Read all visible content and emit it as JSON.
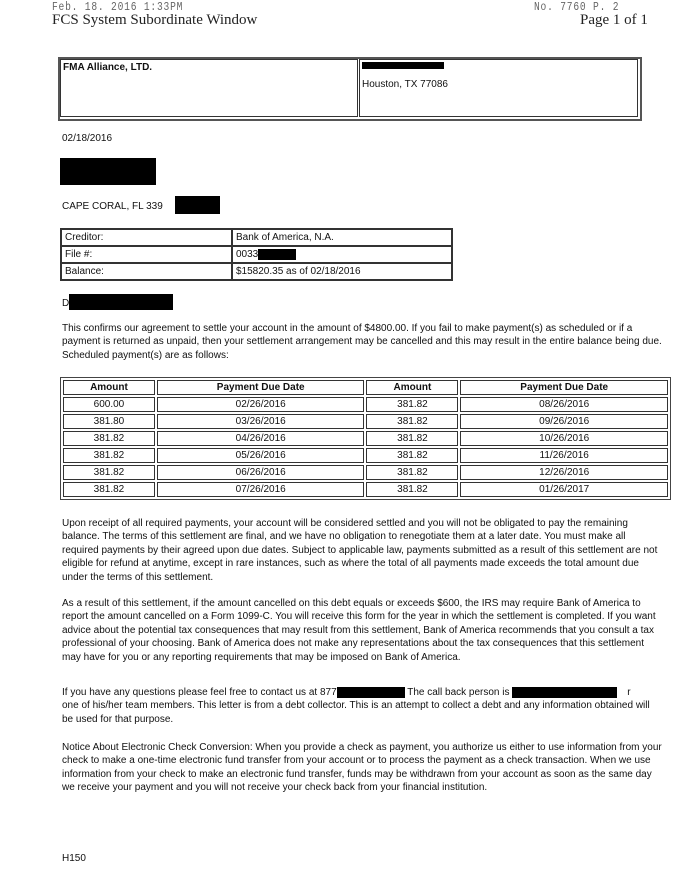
{
  "fax_header": {
    "datetime": "Feb. 18. 2016   1:33PM",
    "number": "No. 7760   P. 2"
  },
  "window_title": "FCS System Subordinate Window",
  "page_label": "Page 1 of 1",
  "sender": {
    "name": "FMA Alliance, LTD.",
    "city": "Houston, TX 77086"
  },
  "letter_date": "02/18/2016",
  "recipient": {
    "city_line": "CAPE CORAL, FL  339"
  },
  "account": {
    "rows": [
      {
        "label": "Creditor:",
        "value": "Bank of America, N.A."
      },
      {
        "label": "File #:",
        "value": "0033"
      },
      {
        "label": "Balance:",
        "value": "$15820.35 as of 02/18/2016"
      }
    ]
  },
  "salutation": "Dear",
  "intro": "This confirms our agreement to settle your account in the amount of $4800.00. If you fail to make payment(s) as scheduled or if a payment is returned as unpaid, then your settlement arrangement may be cancelled and this may result in the entire balance being due. Scheduled payment(s) are as follows:",
  "schedule": {
    "headers": [
      "Amount",
      "Payment Due Date",
      "Amount",
      "Payment Due Date"
    ],
    "rows": [
      [
        "600.00",
        "02/26/2016",
        "381.82",
        "08/26/2016"
      ],
      [
        "381.80",
        "03/26/2016",
        "381.82",
        "09/26/2016"
      ],
      [
        "381.82",
        "04/26/2016",
        "381.82",
        "10/26/2016"
      ],
      [
        "381.82",
        "05/26/2016",
        "381.82",
        "11/26/2016"
      ],
      [
        "381.82",
        "06/26/2016",
        "381.82",
        "12/26/2016"
      ],
      [
        "381.82",
        "07/26/2016",
        "381.82",
        "01/26/2017"
      ]
    ]
  },
  "para_settled": "Upon receipt of all required payments, your account will be considered settled and you will not be obligated to pay the remaining balance. The terms of this settlement are final, and we have no obligation to renegotiate them at a later date. You must make all required payments by their agreed upon due dates. Subject to applicable law, payments submitted as a result of this settlement are not eligible for refund at anytime, except in rare instances, such as where the total of all payments made exceeds the total amount due under the terms of this settlement.",
  "para_irs": "As a result of this settlement, if the amount cancelled on this debt equals or exceeds $600, the IRS may require Bank of America to report the amount cancelled on a Form 1099-C. You will receive this form for the year in which the settlement is completed.  If you want advice about the potential tax consequences that may result from this settlement, Bank of America recommends that you consult a tax professional of your choosing. Bank of America does not make any representations about the tax consequences that this settlement may have for you or any reporting requirements that may be imposed on Bank of America.",
  "contact": {
    "part1": "If you have any questions please feel free to contact us at 877",
    "part2": " The call back person is ",
    "part3": "r",
    "line2": "one of his/her team members.  This letter is from a debt collector. This is an attempt to collect a debt and any information obtained will be used for that purpose."
  },
  "para_check": "Notice About Electronic Check Conversion: When you provide a check as payment, you authorize us either to use information from your check to make a one-time electronic fund transfer from your account or to process the payment as a check transaction. When we use information from your check to make an electronic fund transfer, funds may be withdrawn from your account as soon as the same day we receive your payment and you will not receive your check back from your financial institution.",
  "footer_code": "H150"
}
